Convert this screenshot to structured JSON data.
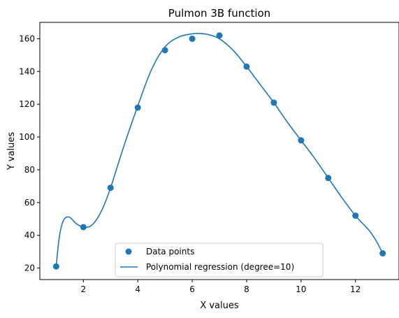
{
  "chart_data": {
    "type": "scatter",
    "title": "Pulmon 3B function",
    "xlabel": "X values",
    "ylabel": "Y values",
    "xlim": [
      0.4,
      13.6
    ],
    "ylim": [
      13.0,
      170.0
    ],
    "x_ticks": [
      2,
      4,
      6,
      8,
      10,
      12
    ],
    "y_ticks": [
      20,
      40,
      60,
      80,
      100,
      120,
      140,
      160
    ],
    "grid": false,
    "legend_position": "lower center",
    "colors": {
      "series": "#1f77b4"
    },
    "series": [
      {
        "name": "Data points",
        "kind": "scatter",
        "x": [
          1,
          2,
          3,
          4,
          5,
          6,
          7,
          8,
          9,
          10,
          11,
          12,
          13
        ],
        "y": [
          21,
          45,
          69,
          118,
          153,
          160,
          162,
          143,
          121,
          98,
          75,
          52,
          29
        ]
      },
      {
        "name": "Polynomial regression (degree=10)",
        "kind": "line",
        "x": [
          1.0,
          1.1,
          1.2,
          1.3,
          1.4,
          1.5,
          1.6,
          1.75,
          2.0,
          2.25,
          2.5,
          2.75,
          3.0,
          3.5,
          4.0,
          4.5,
          5.0,
          5.5,
          6.0,
          6.3,
          6.6,
          7.0,
          7.5,
          8.0,
          8.5,
          9.0,
          9.5,
          10.0,
          10.5,
          11.0,
          11.5,
          12.0,
          12.25,
          12.5,
          12.75,
          13.0
        ],
        "y": [
          21,
          37,
          46,
          50,
          51.2,
          51,
          49.5,
          47,
          45,
          45.5,
          50,
          58,
          69,
          95,
          119,
          141,
          155,
          161,
          163,
          163.2,
          162.5,
          160,
          153,
          143,
          132,
          121,
          109,
          98,
          87,
          75,
          63,
          52,
          47.5,
          43,
          37,
          29
        ]
      }
    ]
  }
}
